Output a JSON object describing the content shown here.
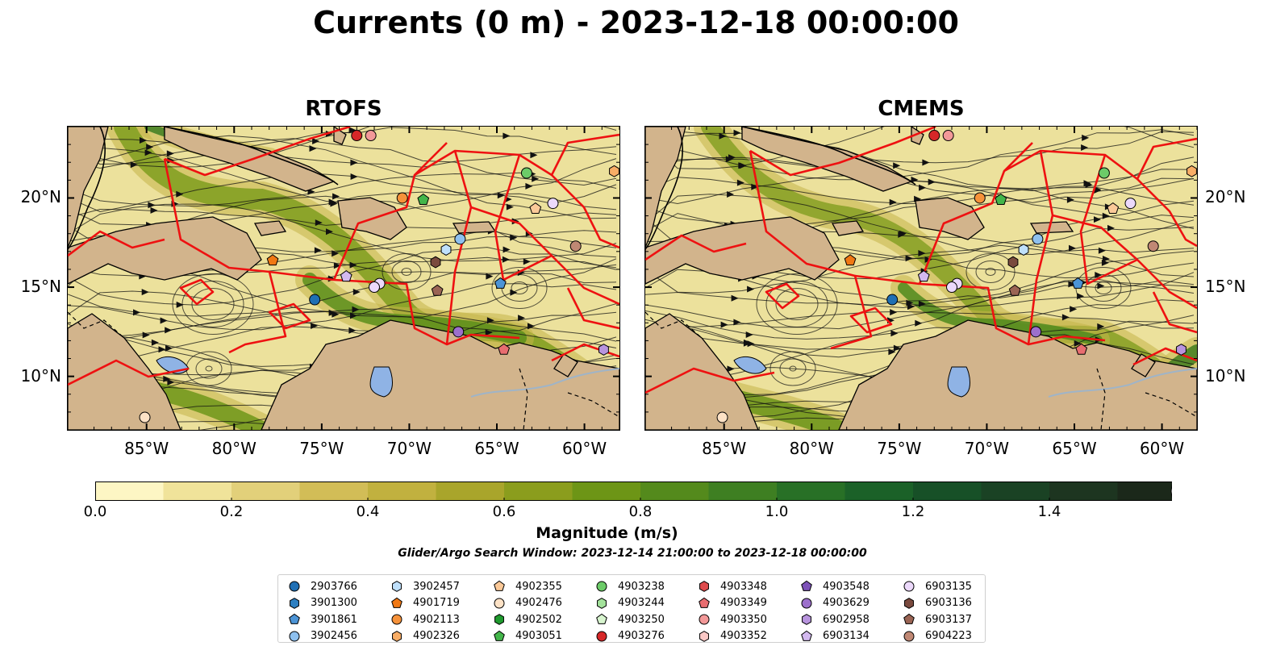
{
  "title": "Currents (0 m) - 2023-12-18 00:00:00",
  "panels": [
    {
      "title": "RTOFS"
    },
    {
      "title": "CMEMS"
    }
  ],
  "axes": {
    "lon_ticks": [
      "85°W",
      "80°W",
      "75°W",
      "70°W",
      "65°W",
      "60°W"
    ],
    "lat_ticks": [
      "20°N",
      "15°N",
      "10°N"
    ]
  },
  "colorbar": {
    "label": "Magnitude (m/s)",
    "ticks": [
      "0.0",
      "0.2",
      "0.4",
      "0.6",
      "0.8",
      "1.0",
      "1.2",
      "1.4"
    ],
    "colors": [
      "#fdf6c4",
      "#f0e39a",
      "#e2d07a",
      "#d2bd57",
      "#c1b13f",
      "#a9a52b",
      "#8b9d1d",
      "#6d9516",
      "#548a1c",
      "#3e7f22",
      "#287026",
      "#1b6128",
      "#175027",
      "#1a4224",
      "#1d3520",
      "#1b281a"
    ],
    "extend": "max"
  },
  "search_window": "Glider/Argo Search Window: 2023-12-14 21:00:00 to 2023-12-18 00:00:00",
  "legend": [
    {
      "label": "2903766",
      "marker": "circle",
      "color": "#1f6fb4"
    },
    {
      "label": "3901300",
      "marker": "hexagon",
      "color": "#2d7fc1"
    },
    {
      "label": "3901861",
      "marker": "pentagon",
      "color": "#4c94d6"
    },
    {
      "label": "3902456",
      "marker": "circle",
      "color": "#8ec0ee"
    },
    {
      "label": "3902457",
      "marker": "hexagon",
      "color": "#bfe0fb"
    },
    {
      "label": "4901719",
      "marker": "pentagon",
      "color": "#f07814"
    },
    {
      "label": "4902113",
      "marker": "circle",
      "color": "#f6923a"
    },
    {
      "label": "4902326",
      "marker": "hexagon",
      "color": "#f8ad66"
    },
    {
      "label": "4902355",
      "marker": "pentagon",
      "color": "#fbc998"
    },
    {
      "label": "4902476",
      "marker": "circle",
      "color": "#fde2c6"
    },
    {
      "label": "4902502",
      "marker": "hexagon",
      "color": "#1f9a2e"
    },
    {
      "label": "4903051",
      "marker": "pentagon",
      "color": "#43b64a"
    },
    {
      "label": "4903238",
      "marker": "circle",
      "color": "#6ccb68"
    },
    {
      "label": "4903244",
      "marker": "hexagon",
      "color": "#a3e29b"
    },
    {
      "label": "4903250",
      "marker": "pentagon",
      "color": "#d8f5cf"
    },
    {
      "label": "4903276",
      "marker": "circle",
      "color": "#d62728"
    },
    {
      "label": "4903348",
      "marker": "hexagon",
      "color": "#de4a4c"
    },
    {
      "label": "4903349",
      "marker": "pentagon",
      "color": "#e86d70"
    },
    {
      "label": "4903350",
      "marker": "circle",
      "color": "#f29898"
    },
    {
      "label": "4903352",
      "marker": "hexagon",
      "color": "#fac8c6"
    },
    {
      "label": "4903548",
      "marker": "pentagon",
      "color": "#7d52b8"
    },
    {
      "label": "4903629",
      "marker": "circle",
      "color": "#9c70cc"
    },
    {
      "label": "6902958",
      "marker": "hexagon",
      "color": "#b894de"
    },
    {
      "label": "6903134",
      "marker": "pentagon",
      "color": "#d3b9ef"
    },
    {
      "label": "6903135",
      "marker": "circle",
      "color": "#ecd9fb"
    },
    {
      "label": "6903136",
      "marker": "hexagon",
      "color": "#7a4a3e"
    },
    {
      "label": "6903137",
      "marker": "pentagon",
      "color": "#9a6454"
    },
    {
      "label": "6904223",
      "marker": "circle",
      "color": "#c08874"
    }
  ],
  "map_extent": {
    "lon": [
      -89.5,
      -58.0
    ],
    "lat": [
      7.0,
      24.0
    ]
  },
  "floats": [
    {
      "id": "4903276",
      "lon": -73.0,
      "lat": 23.5
    },
    {
      "id": "4903350",
      "lon": -72.2,
      "lat": 23.5
    },
    {
      "id": "4903238",
      "lon": -63.3,
      "lat": 21.4
    },
    {
      "id": "4902326",
      "lon": -58.3,
      "lat": 21.5
    },
    {
      "id": "4902113",
      "lon": -70.4,
      "lat": 20.0
    },
    {
      "id": "4903051",
      "lon": -69.2,
      "lat": 19.9
    },
    {
      "id": "6903135",
      "lon": -61.8,
      "lat": 19.7
    },
    {
      "id": "4902355",
      "lon": -62.8,
      "lat": 19.4
    },
    {
      "id": "3902456",
      "lon": -67.1,
      "lat": 17.7
    },
    {
      "id": "3902457",
      "lon": -67.9,
      "lat": 17.1
    },
    {
      "id": "6904223",
      "lon": -60.5,
      "lat": 17.3
    },
    {
      "id": "4901719",
      "lon": -77.8,
      "lat": 16.5
    },
    {
      "id": "6903136",
      "lon": -68.5,
      "lat": 16.4
    },
    {
      "id": "6903134",
      "lon": -73.6,
      "lat": 15.6
    },
    {
      "id": "6903135",
      "lon": -71.7,
      "lat": 15.2
    },
    {
      "id": "6903135",
      "lon": -72.0,
      "lat": 15.0
    },
    {
      "id": "3901861",
      "lon": -64.8,
      "lat": 15.2
    },
    {
      "id": "6903137",
      "lon": -68.4,
      "lat": 14.8
    },
    {
      "id": "2903766",
      "lon": -75.4,
      "lat": 14.3
    },
    {
      "id": "4903629",
      "lon": -67.2,
      "lat": 12.5
    },
    {
      "id": "4903349",
      "lon": -64.6,
      "lat": 11.5
    },
    {
      "id": "6902958",
      "lon": -58.9,
      "lat": 11.5
    },
    {
      "id": "4902476",
      "lon": -85.1,
      "lat": 7.7
    }
  ]
}
